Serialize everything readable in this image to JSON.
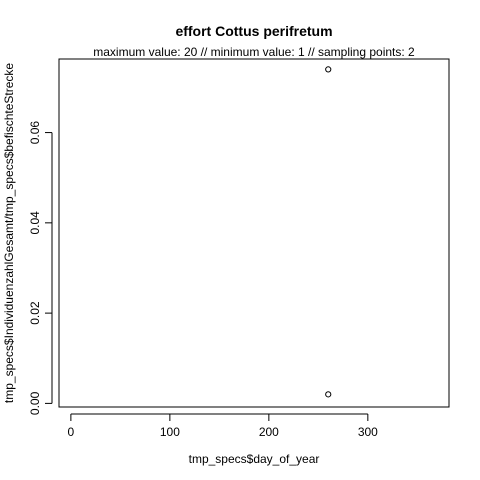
{
  "chart_data": {
    "type": "scatter",
    "title": "effort Cottus perifretum",
    "subtitle": "maximum value: 20  //  minimum value: 1  // sampling points: 2",
    "xlabel": "tmp_specs$day_of_year",
    "ylabel": "tmp_specs$IndividuenzahlGesamt/tmp_specs$befischteStrecke",
    "xlim": [
      -12,
      382
    ],
    "ylim": [
      -0.0008,
      0.0763
    ],
    "x_ticks": [
      0,
      100,
      200,
      300
    ],
    "x_tick_labels": [
      "0",
      "100",
      "200",
      "300"
    ],
    "y_ticks": [
      0.0,
      0.02,
      0.04,
      0.06
    ],
    "y_tick_labels": [
      "0.00",
      "0.02",
      "0.04",
      "0.06"
    ],
    "points": [
      {
        "x": 260,
        "y": 0.074
      },
      {
        "x": 260,
        "y": 0.002
      }
    ],
    "grid": false,
    "marker": "open-circle",
    "colors": {
      "foreground": "#000000",
      "background": "#ffffff"
    }
  }
}
